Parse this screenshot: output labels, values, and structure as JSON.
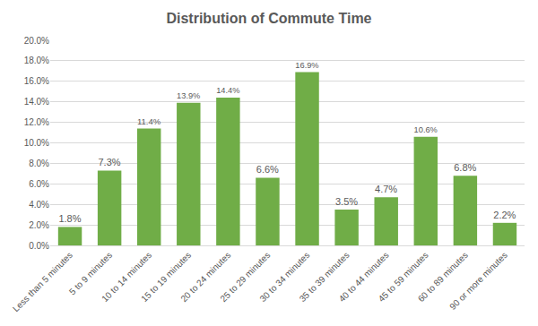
{
  "chart_data": {
    "type": "bar",
    "title": "Distribution of Commute Time",
    "categories": [
      "Less than 5 minutes",
      "5 to 9 minutes",
      "10 to 14 minutes",
      "15 to 19 minutes",
      "20 to 24 minutes",
      "25 to 29 minutes",
      "30 to 34 minutes",
      "35 to 39 minutes",
      "40 to 44 minutes",
      "45 to 59 minutes",
      "60 to 89 minutes",
      "90 or more minutes"
    ],
    "values": [
      1.8,
      7.3,
      11.4,
      13.9,
      14.4,
      6.6,
      16.9,
      3.5,
      4.7,
      10.6,
      6.8,
      2.2
    ],
    "value_labels": [
      "1.8%",
      "7.3%",
      "11.4%",
      "13.9%",
      "14.4%",
      "6.6%",
      "16.9%",
      "3.5%",
      "4.7%",
      "10.6%",
      "6.8%",
      "2.2%"
    ],
    "color": "#70ad47",
    "ylim": [
      0,
      20
    ],
    "yticks": [
      {
        "value": 0,
        "label": "0.0%"
      },
      {
        "value": 2,
        "label": "2.0%"
      },
      {
        "value": 4,
        "label": "4.0%"
      },
      {
        "value": 6,
        "label": "6.0%"
      },
      {
        "value": 8,
        "label": "8.0%"
      },
      {
        "value": 10,
        "label": "10.0%"
      },
      {
        "value": 12,
        "label": "12.0%"
      },
      {
        "value": 14,
        "label": "14.0%"
      },
      {
        "value": 16,
        "label": "16.0%"
      },
      {
        "value": 18,
        "label": "18.0%"
      },
      {
        "value": 20,
        "label": "20.0%"
      }
    ],
    "grid": true,
    "data_labels": true
  }
}
